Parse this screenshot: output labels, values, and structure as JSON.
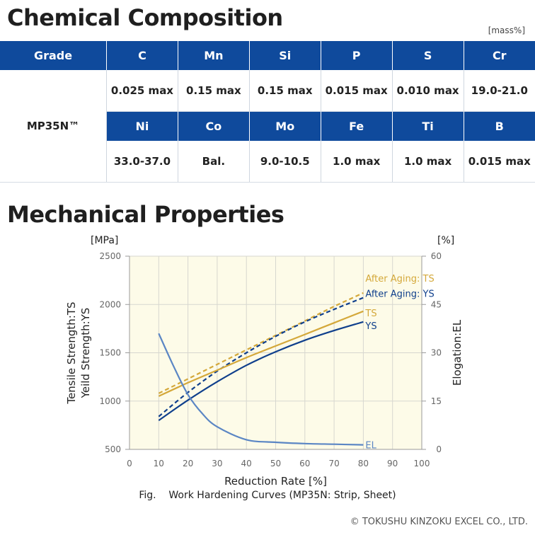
{
  "composition": {
    "title": "Chemical Composition",
    "unit_note": "[mass%]",
    "grade_header": "Grade",
    "grade": "MP35N™",
    "row1_elements": [
      "C",
      "Mn",
      "Si",
      "P",
      "S",
      "Cr"
    ],
    "row1_values": [
      "0.025 max",
      "0.15 max",
      "0.15 max",
      "0.015 max",
      "0.010 max",
      "19.0-21.0"
    ],
    "row2_elements": [
      "Ni",
      "Co",
      "Mo",
      "Fe",
      "Ti",
      "B"
    ],
    "row2_values": [
      "33.0-37.0",
      "Bal.",
      "9.0-10.5",
      "1.0 max",
      "1.0 max",
      "0.015 max"
    ],
    "colors": {
      "header_bg": "#0f4a9c",
      "grade_bg": "#dfe9f5"
    }
  },
  "mechanical": {
    "title": "Mechanical Properties",
    "caption": "Fig.    Work Hardening Curves (MP35N: Strip, Sheet)",
    "copyright": "© TOKUSHU KINZOKU EXCEL CO., LTD."
  },
  "chart_data": {
    "type": "line",
    "xlabel": "Reduction Rate [%]",
    "ylabel_left": [
      "Tensile Strength:TS",
      "Yeild Strength:YS"
    ],
    "ylabel_right": "Elogation:EL",
    "yunit_left": "[MPa]",
    "yunit_right": "[%]",
    "xlim": [
      0,
      100
    ],
    "xticks": [
      0,
      10,
      20,
      30,
      40,
      50,
      60,
      70,
      80,
      90,
      100
    ],
    "ylim_left": [
      500,
      2500
    ],
    "yticks_left": [
      500,
      1000,
      1500,
      2000,
      2500
    ],
    "ylim_right": [
      0,
      60
    ],
    "yticks_right": [
      0,
      15,
      30,
      45,
      60
    ],
    "grid": true,
    "plot_background": "#fdfbe8",
    "series": [
      {
        "name": "After Aging: TS",
        "axis": "left",
        "style": "dashed",
        "color": "#d4a83a",
        "x": [
          10,
          20,
          30,
          40,
          50,
          60,
          70,
          80
        ],
        "y": [
          1080,
          1230,
          1380,
          1530,
          1680,
          1830,
          1980,
          2120
        ]
      },
      {
        "name": "After Aging: YS",
        "axis": "left",
        "style": "dashed",
        "color": "#0f3f8c",
        "x": [
          10,
          20,
          30,
          40,
          50,
          60,
          70,
          80
        ],
        "y": [
          840,
          1090,
          1310,
          1500,
          1670,
          1820,
          1950,
          2070
        ]
      },
      {
        "name": "TS",
        "axis": "left",
        "style": "solid",
        "color": "#d4a83a",
        "x": [
          10,
          20,
          30,
          40,
          50,
          60,
          70,
          80
        ],
        "y": [
          1050,
          1190,
          1320,
          1450,
          1570,
          1690,
          1810,
          1930
        ]
      },
      {
        "name": "YS",
        "axis": "left",
        "style": "solid",
        "color": "#0f3f8c",
        "x": [
          10,
          20,
          30,
          40,
          50,
          60,
          70,
          80
        ],
        "y": [
          800,
          1010,
          1200,
          1370,
          1510,
          1630,
          1730,
          1820
        ]
      },
      {
        "name": "EL",
        "axis": "right",
        "style": "solid",
        "color": "#5b86c4",
        "x": [
          10,
          15,
          20,
          25,
          30,
          40,
          50,
          60,
          70,
          80
        ],
        "y": [
          36,
          26,
          17,
          11,
          7,
          3,
          2.2,
          1.8,
          1.6,
          1.4
        ]
      }
    ]
  }
}
